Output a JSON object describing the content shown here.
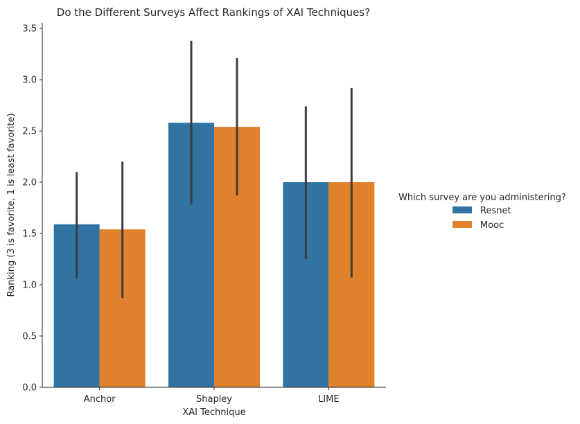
{
  "chart_data": {
    "type": "bar",
    "title": "Do the Different Surveys Affect Rankings of XAI Techniques?",
    "xlabel": "XAI Technique",
    "ylabel": "Ranking (3 is favorite, 1 is least favorite)",
    "categories": [
      "Anchor",
      "Shapley",
      "LIME"
    ],
    "ylim": [
      0,
      3.55
    ],
    "yticks": [
      "0.0",
      "0.5",
      "1.0",
      "1.5",
      "2.0",
      "2.5",
      "3.0",
      "3.5"
    ],
    "grid": false,
    "legend": {
      "title": "Which survey are you administering?",
      "placement": "right"
    },
    "series": [
      {
        "name": "Resnet",
        "color": "#3274a1",
        "values": [
          1.59,
          2.58,
          2.0
        ],
        "ci": [
          [
            1.06,
            2.1
          ],
          [
            1.78,
            3.38
          ],
          [
            1.25,
            2.74
          ]
        ]
      },
      {
        "name": "Mooc",
        "color": "#e1812c",
        "values": [
          1.54,
          2.54,
          2.0
        ],
        "ci": [
          [
            0.87,
            2.2
          ],
          [
            1.87,
            3.21
          ],
          [
            1.07,
            2.92
          ]
        ]
      }
    ],
    "errorbar_color": "#3d3d3d"
  }
}
